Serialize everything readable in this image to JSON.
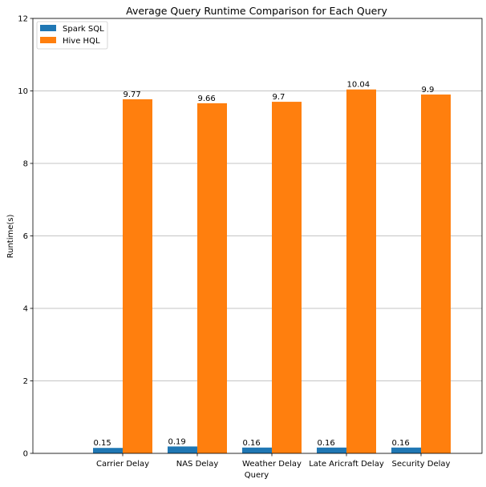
{
  "chart_data": {
    "type": "bar",
    "title": "Average Query Runtime Comparison for Each Query",
    "xlabel": "Query",
    "ylabel": "Runtime(s)",
    "categories": [
      "Carrier Delay",
      "NAS Delay",
      "Weather Delay",
      "Late Aricraft Delay",
      "Security Delay"
    ],
    "series": [
      {
        "name": "Spark SQL",
        "values": [
          0.15,
          0.19,
          0.16,
          0.16,
          0.16
        ],
        "labels": [
          "0.15",
          "0.19",
          "0.16",
          "0.16",
          "0.16"
        ],
        "color": "#1f77b4"
      },
      {
        "name": "Hive HQL",
        "values": [
          9.77,
          9.66,
          9.7,
          10.04,
          9.9
        ],
        "labels": [
          "9.77",
          "9.66",
          "9.7",
          "10.04",
          "9.9"
        ],
        "color": "#ff7f0e"
      }
    ],
    "ylim": [
      0,
      12
    ],
    "yticks": [
      "0",
      "2",
      "4",
      "6",
      "8",
      "10",
      "12"
    ],
    "grid": "y",
    "legend_position": "top-left"
  }
}
